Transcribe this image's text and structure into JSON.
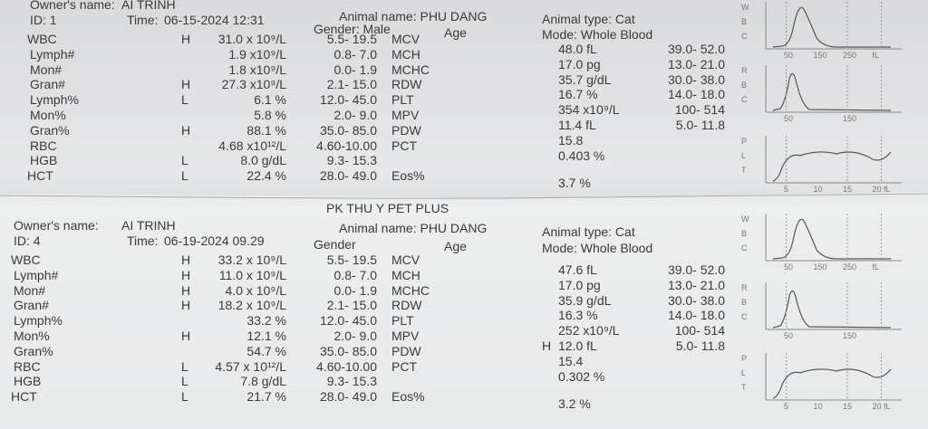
{
  "reports": [
    {
      "owner_label": "Owner's name:",
      "owner": "AI TRINH",
      "id": "ID: 1",
      "time_label": "Time:",
      "time": "06-15-2024 12:31",
      "animal_name": "Animal name: PHU DANG",
      "gender": "Gender: Male",
      "age": "Age",
      "animal_type": "Animal type: Cat",
      "mode": "Mode: Whole Blood",
      "left": [
        {
          "name": "WBC",
          "flag": "H",
          "value": "31.0 x 10⁹/L",
          "range": "5.5- 19.5"
        },
        {
          "name": "Lymph#",
          "value": "1.9 x10⁹/L",
          "range": "0.8- 7.0"
        },
        {
          "name": "Mon#",
          "value": "1.8 x10⁹/L",
          "range": "0.0- 1.9"
        },
        {
          "name": "Gran#",
          "flag": "H",
          "value": "27.3 x10⁹/L",
          "range": "2.1- 15.0"
        },
        {
          "name": "Lymph%",
          "flag": "L",
          "value": "6.1 %",
          "range": "12.0- 45.0"
        },
        {
          "name": "Mon%",
          "value": "5.8 %",
          "range": "2.0- 9.0"
        },
        {
          "name": "Gran%",
          "flag": "H",
          "value": "88.1 %",
          "range": "35.0- 85.0"
        },
        {
          "name": "RBC",
          "value": "4.68 x10¹²/L",
          "range": "4.60-10.00"
        },
        {
          "name": "HGB",
          "flag": "L",
          "value": "8.0 g/dL",
          "range": "9.3- 15.3"
        },
        {
          "name": "HCT",
          "flag": "L",
          "value": "22.4 %",
          "range": "28.0- 49.0"
        }
      ],
      "right": [
        {
          "name": "MCV",
          "value": "48.0 fL",
          "range": "39.0- 52.0"
        },
        {
          "name": "MCH",
          "value": "17.0 pg",
          "range": "13.0- 21.0"
        },
        {
          "name": "MCHC",
          "value": "35.7 g/dL",
          "range": "30.0- 38.0"
        },
        {
          "name": "RDW",
          "value": "16.7 %",
          "range": "14.0- 18.0"
        },
        {
          "name": "PLT",
          "value": "354 x10⁹/L",
          "range": "100- 514"
        },
        {
          "name": "MPV",
          "value": "11.4 fL",
          "range": "5.0- 11.8"
        },
        {
          "name": "PDW",
          "value": "15.8"
        },
        {
          "name": "PCT",
          "value": "0.403 %"
        },
        {
          "name": "Eos%",
          "value": "3.7 %"
        }
      ],
      "histograms": [
        {
          "letters": [
            "W",
            "B",
            "C"
          ],
          "ticks": [
            "50",
            "150",
            "250",
            "fL"
          ]
        },
        {
          "letters": [
            "R",
            "B",
            "C"
          ],
          "ticks": [
            "50",
            "150"
          ]
        },
        {
          "letters": [
            "P",
            "L",
            "T"
          ],
          "ticks": [
            "5",
            "10",
            "15",
            "20 fL"
          ]
        }
      ]
    },
    {
      "clinic": "PK THU Y PET PLUS",
      "owner_label": "Owner's name:",
      "owner": "AI TRINH",
      "id": "ID: 4",
      "time_label": "Time:",
      "time": "06-19-2024 09.29",
      "animal_name": "Animal name: PHU DANG",
      "gender": "Gender",
      "age": "Age",
      "animal_type": "Animal type: Cat",
      "mode": "Mode: Whole Blood",
      "left": [
        {
          "name": "WBC",
          "flag": "H",
          "value": "33.2 x 10⁹/L",
          "range": "5.5- 19.5"
        },
        {
          "name": "Lymph#",
          "flag": "H",
          "value": "11.0 x 10⁹/L",
          "range": "0.8- 7.0"
        },
        {
          "name": "Mon#",
          "flag": "H",
          "value": "4.0 x 10⁹/L",
          "range": "0.0- 1.9"
        },
        {
          "name": "Gran#",
          "flag": "H",
          "value": "18.2 x 10⁹/L",
          "range": "2.1- 15.0"
        },
        {
          "name": "Lymph%",
          "value": "33.2 %",
          "range": "12.0- 45.0"
        },
        {
          "name": "Mon%",
          "flag": "H",
          "value": "12.1 %",
          "range": "2.0- 9.0"
        },
        {
          "name": "Gran%",
          "value": "54.7 %",
          "range": "35.0- 85.0"
        },
        {
          "name": "RBC",
          "flag": "L",
          "value": "4.57 x 10¹²/L",
          "range": "4.60-10.00"
        },
        {
          "name": "HGB",
          "flag": "L",
          "value": "7.8 g/dL",
          "range": "9.3- 15.3"
        },
        {
          "name": "HCT",
          "flag": "L",
          "value": "21.7 %",
          "range": "28.0- 49.0"
        }
      ],
      "right": [
        {
          "name": "MCV",
          "value": "47.6 fL",
          "range": "39.0- 52.0"
        },
        {
          "name": "MCH",
          "value": "17.0 pg",
          "range": "13.0- 21.0"
        },
        {
          "name": "MCHC",
          "value": "35.9 g/dL",
          "range": "30.0- 38.0"
        },
        {
          "name": "RDW",
          "value": "16.3 %",
          "range": "14.0- 18.0"
        },
        {
          "name": "PLT",
          "value": "252 x10⁹/L",
          "range": "100- 514"
        },
        {
          "name": "MPV",
          "flag": "H",
          "value": "12.0 fL",
          "range": "5.0- 11.8"
        },
        {
          "name": "PDW",
          "value": "15.4"
        },
        {
          "name": "PCT",
          "value": "0.302 %"
        },
        {
          "name": "Eos%",
          "value": "3.2 %"
        }
      ],
      "histograms": [
        {
          "letters": [
            "W",
            "B",
            "C"
          ],
          "ticks": [
            "50",
            "150",
            "250",
            "fL"
          ]
        },
        {
          "letters": [
            "R",
            "B",
            "C"
          ],
          "ticks": [
            "50",
            "150"
          ]
        },
        {
          "letters": [
            "P",
            "L",
            "T"
          ],
          "ticks": [
            "5",
            "10",
            "15",
            "20 fL"
          ]
        }
      ]
    }
  ]
}
